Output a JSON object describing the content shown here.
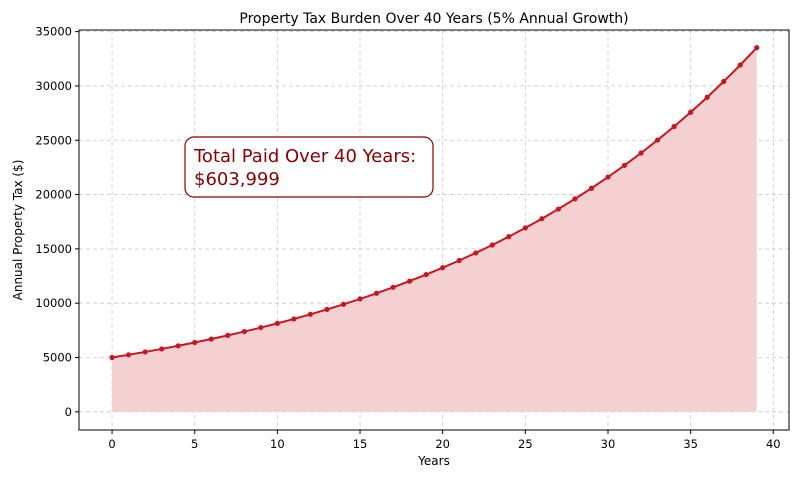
{
  "chart_data": {
    "type": "area",
    "title": "Property Tax Burden Over 40 Years (5% Annual Growth)",
    "xlabel": "Years",
    "ylabel": "Annual Property Tax ($)",
    "xlim": [
      -2,
      40.95
    ],
    "ylim": [
      -1674,
      35150
    ],
    "xticks": [
      0,
      5,
      10,
      15,
      20,
      25,
      30,
      35,
      40
    ],
    "yticks": [
      0,
      5000,
      10000,
      15000,
      20000,
      25000,
      30000,
      35000
    ],
    "grid": true,
    "line_color": "#c8171e",
    "fill_color": "#f5d0d2",
    "series": [
      {
        "x": [
          0,
          1,
          2,
          3,
          4,
          5,
          6,
          7,
          8,
          9,
          10,
          11,
          12,
          13,
          14,
          15,
          16,
          17,
          18,
          19,
          20,
          21,
          22,
          23,
          24,
          25,
          26,
          27,
          28,
          29,
          30,
          31,
          32,
          33,
          34,
          35,
          36,
          37,
          38,
          39
        ],
        "values": [
          5000,
          5250,
          5513,
          5788,
          6078,
          6381,
          6700,
          7036,
          7387,
          7757,
          8144,
          8552,
          8979,
          9428,
          9900,
          10395,
          10914,
          11460,
          12033,
          12635,
          13266,
          13930,
          14626,
          15358,
          16125,
          16932,
          17778,
          18667,
          19601,
          20581,
          21610,
          22690,
          23825,
          25016,
          26267,
          27580,
          28959,
          30407,
          31928,
          33524
        ]
      }
    ],
    "annotation": {
      "line1": "Total Paid Over 40 Years:",
      "line2": "$603,999",
      "text_color": "#8b0000",
      "border_color": "#8b0000"
    }
  }
}
